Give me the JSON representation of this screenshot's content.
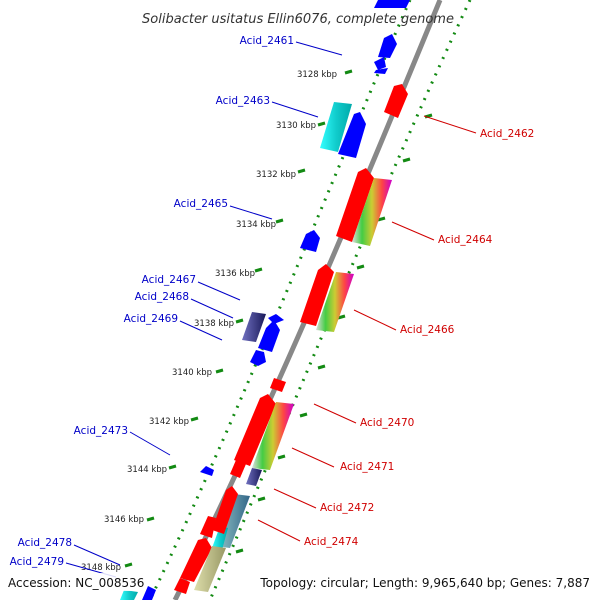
{
  "title": "Solibacter usitatus Ellin6076, complete genome",
  "footer": {
    "accession": "Accession: NC_008536",
    "topology": "Topology: circular; Length: 9,965,640 bp; Genes: 7,887"
  },
  "colors": {
    "backbone": "#888888",
    "ruler_tick": "#138a13",
    "forward_label": "#0000c8",
    "reverse_label": "#d00000",
    "forward_gene": "#0000ff",
    "reverse_gene": "#ff0000"
  },
  "ticks": [
    "3128 kbp",
    "3130 kbp",
    "3132 kbp",
    "3134 kbp",
    "3136 kbp",
    "3138 kbp",
    "3140 kbp",
    "3142 kbp",
    "3144 kbp",
    "3146 kbp",
    "3148 kbp"
  ],
  "forward_labels": [
    "Acid_2461",
    "Acid_2463",
    "Acid_2465",
    "Acid_2467",
    "Acid_2468",
    "Acid_2469",
    "Acid_2473",
    "Acid_2478",
    "Acid_2479"
  ],
  "reverse_labels": [
    "Acid_2462",
    "Acid_2464",
    "Acid_2466",
    "Acid_2470",
    "Acid_2471",
    "Acid_2472",
    "Acid_2474"
  ]
}
